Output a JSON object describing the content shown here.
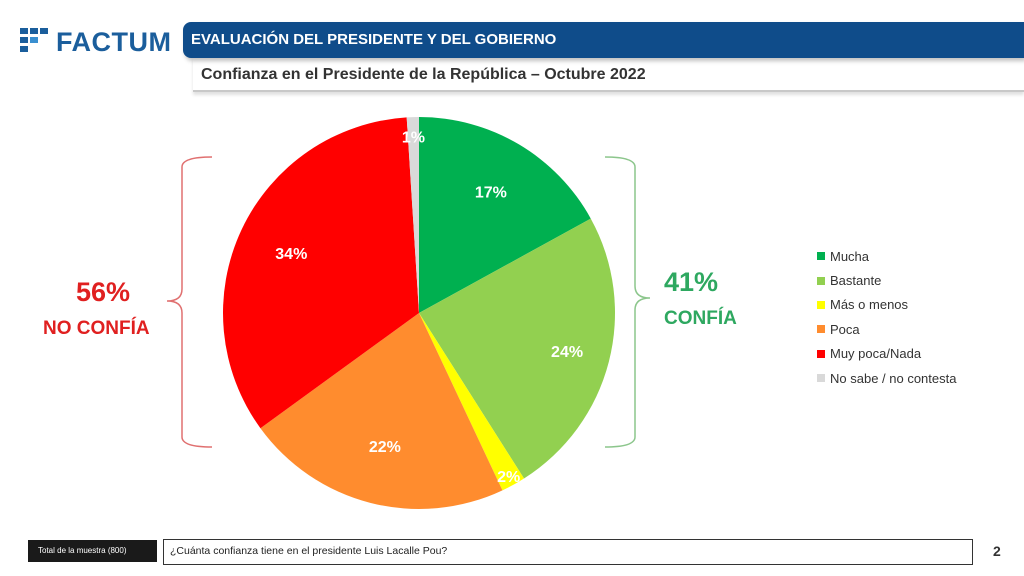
{
  "header": {
    "logo_text": "FACTUM",
    "title": "EVALUACIÓN DEL PRESIDENTE Y DEL GOBIERNO",
    "subtitle": "Confianza en el Presidente de la República – Octubre 2022"
  },
  "chart_data": {
    "type": "pie",
    "categories": [
      "Mucha",
      "Bastante",
      "Más o menos",
      "Poca",
      "Muy poca/Nada",
      "No sabe / no contesta"
    ],
    "values": [
      17,
      24,
      2,
      22,
      34,
      1
    ],
    "labels": [
      "17%",
      "24%",
      "2%",
      "22%",
      "34%",
      "1%"
    ],
    "colors": [
      "#00b050",
      "#92d050",
      "#ffff00",
      "#ff8c2e",
      "#ff0000",
      "#d9d9d9"
    ],
    "legend_position": "right",
    "groups": [
      {
        "pct": "41%",
        "label": "CONFÍA",
        "color": "#2ea860",
        "side": "right"
      },
      {
        "pct": "56%",
        "label": "NO CONFÍA",
        "color": "#e02020",
        "side": "left"
      }
    ]
  },
  "legend": {
    "items": [
      {
        "label": "Mucha",
        "color": "#00b050"
      },
      {
        "label": "Bastante",
        "color": "#92d050"
      },
      {
        "label": "Más o menos",
        "color": "#ffff00"
      },
      {
        "label": "Poca",
        "color": "#ff8c2e"
      },
      {
        "label": "Muy poca/Nada",
        "color": "#ff0000"
      },
      {
        "label": "No sabe / no contesta",
        "color": "#d9d9d9"
      }
    ]
  },
  "footer": {
    "sample": "Total de la muestra (800)",
    "question": "¿Cuánta confianza tiene en el presidente Luis Lacalle Pou?",
    "page_number": "2"
  }
}
